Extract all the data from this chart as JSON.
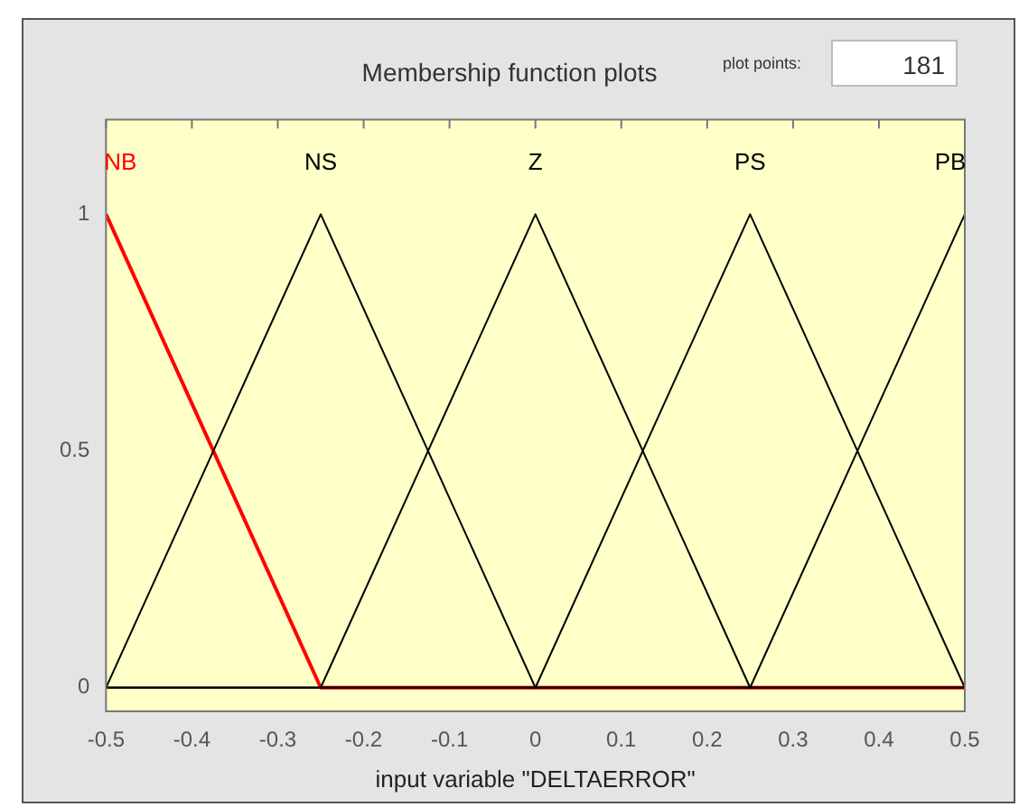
{
  "chart_data": {
    "type": "line",
    "title": "Membership function plots",
    "xlabel": "input variable \"DELTAERROR\"",
    "x": [
      -0.5,
      -0.25,
      0,
      0.25,
      0.5
    ],
    "series": [
      {
        "name": "NS",
        "color": "#000000",
        "values": [
          0,
          1,
          0,
          0,
          0
        ]
      },
      {
        "name": "Z",
        "color": "#000000",
        "values": [
          0,
          0,
          1,
          0,
          0
        ]
      },
      {
        "name": "PS",
        "color": "#000000",
        "values": [
          0,
          0,
          0,
          1,
          0
        ]
      },
      {
        "name": "PB",
        "color": "#000000",
        "values": [
          0,
          0,
          0,
          0,
          1
        ]
      },
      {
        "name": "NB",
        "color": "#ff0000",
        "values": [
          1,
          0,
          0,
          0,
          0
        ]
      }
    ],
    "xlim": [
      -0.5,
      0.5
    ],
    "xticks": [
      -0.5,
      -0.4,
      -0.3,
      -0.2,
      -0.1,
      0,
      0.1,
      0.2,
      0.3,
      0.4,
      0.5
    ],
    "ylim": [
      -0.05,
      1.2
    ],
    "yticks": [
      0,
      0.5,
      1
    ],
    "grid": false,
    "legend": false,
    "annotations": [
      "plot points:",
      "181"
    ]
  }
}
